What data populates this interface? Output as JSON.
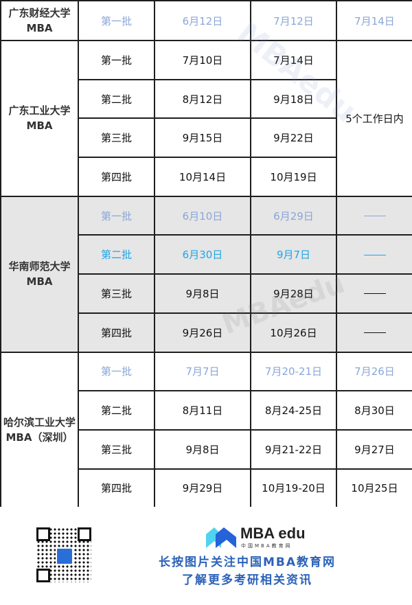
{
  "colors": {
    "light_text": "#8aa6d8",
    "bright_text": "#1ea6e8",
    "gray_bg": "#e6e6e6",
    "border": "#1e1e1e",
    "brand_blue": "#2b62b8"
  },
  "schools": [
    {
      "name": "广东财经大学",
      "suffix": "MBA",
      "rows": [
        {
          "batch": "第一批",
          "start": "6月12日",
          "end": "7月12日",
          "result": "7月14日",
          "style": "light"
        }
      ]
    },
    {
      "name": "广东工业大学",
      "suffix": "MBA",
      "result_merged": "5个工作日内",
      "rows": [
        {
          "batch": "第一批",
          "start": "7月10日",
          "end": "7月14日"
        },
        {
          "batch": "第二批",
          "start": "8月12日",
          "end": "9月18日"
        },
        {
          "batch": "第三批",
          "start": "9月15日",
          "end": "9月22日"
        },
        {
          "batch": "第四批",
          "start": "10月14日",
          "end": "10月19日"
        }
      ]
    },
    {
      "name": "华南师范大学",
      "suffix": "MBA",
      "rows": [
        {
          "batch": "第一批",
          "start": "6月10日",
          "end": "6月29日",
          "result": "——",
          "style": "light"
        },
        {
          "batch": "第二批",
          "start": "6月30日",
          "end": "9月7日",
          "result": "——",
          "style": "bright"
        },
        {
          "batch": "第三批",
          "start": "9月8日",
          "end": "9月28日",
          "result": "——"
        },
        {
          "batch": "第四批",
          "start": "9月26日",
          "end": "10月26日",
          "result": "——"
        }
      ]
    },
    {
      "name": "哈尔滨工业大学",
      "suffix": "MBA（深圳）",
      "rows": [
        {
          "batch": "第一批",
          "start": "7月7日",
          "end": "7月20-21日",
          "result": "7月26日",
          "style": "light"
        },
        {
          "batch": "第二批",
          "start": "8月11日",
          "end": "8月24-25日",
          "result": "8月30日"
        },
        {
          "batch": "第三批",
          "start": "9月8日",
          "end": "9月21-22日",
          "result": "9月27日"
        },
        {
          "batch": "第四批",
          "start": "9月29日",
          "end": "10月19-20日",
          "result": "10月25日"
        }
      ]
    }
  ],
  "watermark": {
    "brand": "MBAedu",
    "sub": "中国MBA教育网"
  },
  "footer": {
    "qr_icon": "qr-code",
    "logo_text": "MBA edu",
    "logo_sub": "中国MBA教育网",
    "line1": "长按图片关注中国MBA教育网",
    "line2": "了解更多考研相关资讯"
  }
}
